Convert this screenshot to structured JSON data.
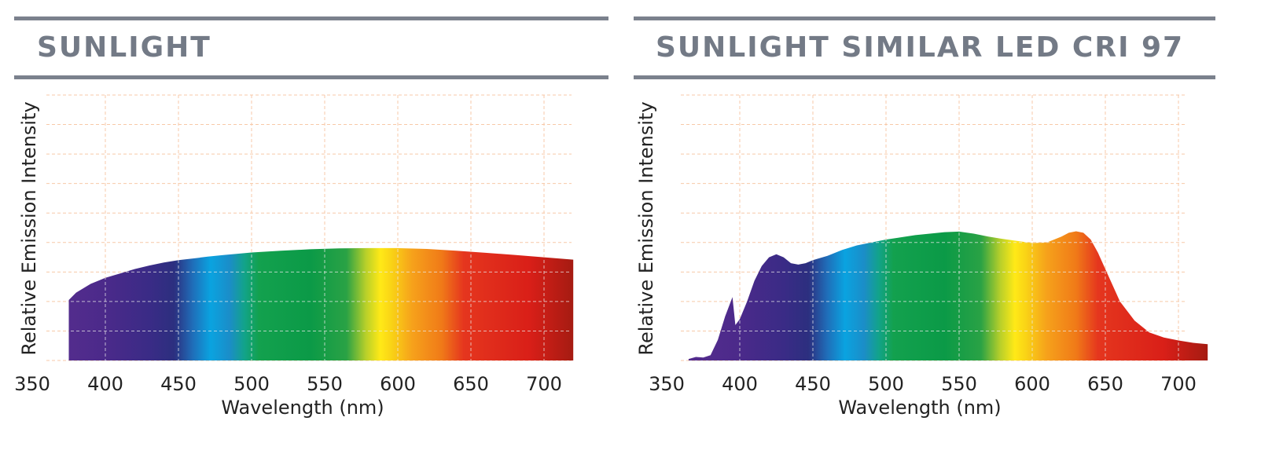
{
  "colors": {
    "rule": "#7b818d",
    "title": "#737a86",
    "grid": "#f7c9a8",
    "grid_over_fill": "#e8e8e8"
  },
  "chart_data": [
    {
      "type": "area",
      "title": "SUNLIGHT",
      "xlabel": "Wavelength (nm)",
      "ylabel": "Relative Emission Intensity",
      "xlim": [
        350,
        720
      ],
      "ylim": [
        0,
        9
      ],
      "x_ticks": [
        "350",
        "400",
        "450",
        "500",
        "550",
        "600",
        "650",
        "700"
      ],
      "grid": true,
      "fill": "visible-spectrum gradient",
      "series": [
        {
          "x": [
            375,
            380,
            390,
            400,
            410,
            420,
            430,
            440,
            450,
            460,
            470,
            480,
            500,
            520,
            540,
            560,
            580,
            600,
            620,
            640,
            660,
            680,
            700,
            720
          ],
          "y": [
            2.05,
            2.3,
            2.6,
            2.8,
            2.95,
            3.1,
            3.22,
            3.32,
            3.4,
            3.46,
            3.52,
            3.57,
            3.66,
            3.72,
            3.77,
            3.8,
            3.81,
            3.81,
            3.78,
            3.72,
            3.65,
            3.58,
            3.5,
            3.42
          ]
        }
      ]
    },
    {
      "type": "area",
      "title": "SUNLIGHT SIMILAR LED CRI 97",
      "xlabel": "Wavelength (nm)",
      "ylabel": "Relative Emission Intensity",
      "xlim": [
        350,
        720
      ],
      "ylim": [
        0,
        9
      ],
      "x_ticks": [
        "350",
        "400",
        "450",
        "500",
        "550",
        "600",
        "650",
        "700"
      ],
      "grid": true,
      "fill": "visible-spectrum gradient",
      "series": [
        {
          "x": [
            365,
            370,
            375,
            380,
            385,
            390,
            395,
            397,
            400,
            405,
            410,
            415,
            420,
            425,
            430,
            435,
            440,
            445,
            450,
            460,
            470,
            480,
            500,
            520,
            540,
            550,
            560,
            570,
            580,
            590,
            600,
            610,
            620,
            625,
            630,
            635,
            640,
            645,
            650,
            655,
            660,
            670,
            680,
            690,
            700,
            710,
            720
          ],
          "y": [
            0.05,
            0.12,
            0.1,
            0.18,
            0.7,
            1.5,
            2.15,
            1.2,
            1.4,
            2.0,
            2.7,
            3.2,
            3.5,
            3.6,
            3.5,
            3.3,
            3.25,
            3.3,
            3.4,
            3.55,
            3.75,
            3.9,
            4.1,
            4.25,
            4.35,
            4.37,
            4.3,
            4.2,
            4.12,
            4.05,
            3.98,
            4.0,
            4.2,
            4.33,
            4.38,
            4.33,
            4.1,
            3.65,
            3.1,
            2.55,
            2.0,
            1.35,
            0.95,
            0.78,
            0.68,
            0.6,
            0.55
          ]
        }
      ]
    }
  ]
}
